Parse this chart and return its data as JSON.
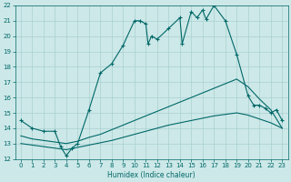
{
  "xlabel": "Humidex (Indice chaleur)",
  "xlim": [
    -0.5,
    23.5
  ],
  "ylim": [
    12,
    22
  ],
  "xticks": [
    0,
    1,
    2,
    3,
    4,
    5,
    6,
    7,
    8,
    9,
    10,
    11,
    12,
    13,
    14,
    15,
    16,
    17,
    18,
    19,
    20,
    21,
    22,
    23
  ],
  "yticks": [
    12,
    13,
    14,
    15,
    16,
    17,
    18,
    19,
    20,
    21,
    22
  ],
  "bg_color": "#cde8e8",
  "grid_color": "#a8d0d0",
  "line_color": "#006868",
  "line1_x": [
    0,
    1,
    2,
    3,
    3.5,
    4,
    4.5,
    5,
    6,
    7,
    8,
    9,
    10,
    10.5,
    11,
    11.2,
    11.5,
    12,
    13,
    14,
    14.2,
    15,
    15.5,
    16,
    16.3,
    17,
    18,
    19,
    20,
    20.5,
    21,
    21.5,
    22,
    22.5,
    23
  ],
  "line1_y": [
    14.5,
    14.0,
    13.8,
    13.8,
    12.8,
    12.2,
    12.7,
    13.0,
    15.2,
    17.6,
    18.2,
    19.4,
    21.0,
    21.0,
    20.8,
    19.5,
    20.0,
    19.8,
    20.5,
    21.2,
    19.5,
    21.6,
    21.2,
    21.7,
    21.1,
    22.0,
    21.0,
    18.8,
    16.1,
    15.5,
    15.5,
    15.3,
    15.0,
    15.2,
    14.5
  ],
  "line2_x": [
    0,
    1,
    2,
    3,
    4,
    5,
    6,
    7,
    8,
    9,
    10,
    11,
    12,
    13,
    14,
    15,
    16,
    17,
    18,
    19,
    20,
    21,
    22,
    23
  ],
  "line2_y": [
    13.5,
    13.3,
    13.2,
    13.1,
    13.0,
    13.15,
    13.4,
    13.6,
    13.9,
    14.2,
    14.5,
    14.8,
    15.1,
    15.4,
    15.7,
    16.0,
    16.3,
    16.6,
    16.9,
    17.2,
    16.7,
    15.9,
    15.2,
    14.0
  ],
  "line3_x": [
    0,
    1,
    2,
    3,
    4,
    5,
    6,
    7,
    8,
    9,
    10,
    11,
    12,
    13,
    14,
    15,
    16,
    17,
    18,
    19,
    20,
    21,
    22,
    23
  ],
  "line3_y": [
    13.0,
    12.9,
    12.8,
    12.7,
    12.6,
    12.75,
    12.9,
    13.05,
    13.2,
    13.4,
    13.6,
    13.8,
    14.0,
    14.2,
    14.35,
    14.5,
    14.65,
    14.8,
    14.9,
    15.0,
    14.85,
    14.6,
    14.35,
    14.0
  ]
}
